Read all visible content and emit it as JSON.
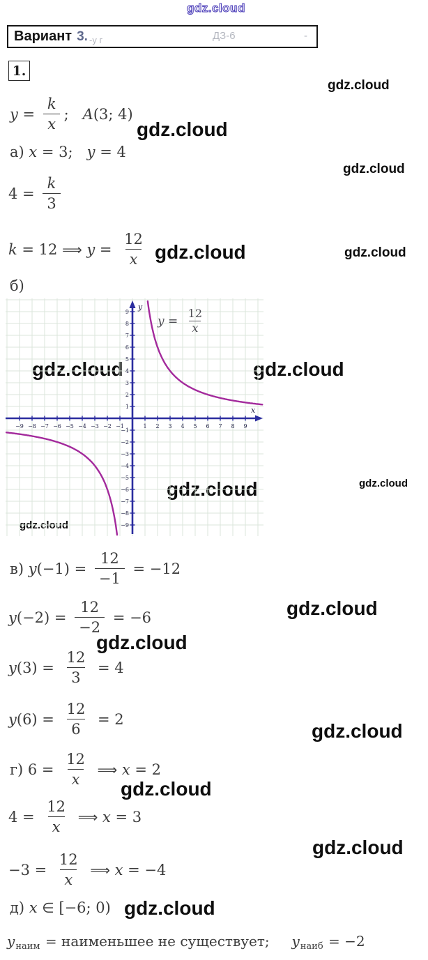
{
  "watermark": {
    "text": "gdz.cloud",
    "color": "#0e0e0e",
    "outline_color": "#4a3cb8"
  },
  "header": {
    "variant_label": "Вариант",
    "variant_number": "3.",
    "ghost_fragments": [
      "-у г",
      "ДЗ-6",
      "-"
    ]
  },
  "problem": {
    "number": "1."
  },
  "solution": {
    "lines": {
      "given": {
        "parts": [
          {
            "v": "y = "
          },
          {
            "frac": [
              "k",
              "x"
            ]
          },
          {
            "v": ";   A(3; 4)"
          }
        ]
      },
      "a_label": {
        "parts": [
          {
            "v": "а) x = 3;   y = 4"
          }
        ]
      },
      "a_eq1": {
        "parts": [
          {
            "v": "4 = "
          },
          {
            "frac": [
              "k",
              "3"
            ]
          }
        ]
      },
      "a_eq2": {
        "parts": [
          {
            "v": "k = 12 "
          },
          {
            "arrow": "⟹"
          },
          {
            "v": " y = "
          },
          {
            "frac": [
              "12",
              "x"
            ]
          }
        ]
      },
      "b_label": {
        "parts": [
          {
            "v": "б)"
          }
        ]
      },
      "v_eq1": {
        "parts": [
          {
            "v": "в) y(−1) = "
          },
          {
            "frac": [
              "12",
              "−1"
            ]
          },
          {
            "v": " = −12"
          }
        ]
      },
      "v_eq2": {
        "parts": [
          {
            "v": "y(−2) = "
          },
          {
            "frac": [
              "12",
              "−2"
            ]
          },
          {
            "v": " = −6"
          }
        ]
      },
      "v_eq3": {
        "parts": [
          {
            "v": "y(3) = "
          },
          {
            "frac": [
              "12",
              "3"
            ]
          },
          {
            "v": " = 4"
          }
        ]
      },
      "v_eq4": {
        "parts": [
          {
            "v": "y(6) = "
          },
          {
            "frac": [
              "12",
              "6"
            ]
          },
          {
            "v": " = 2"
          }
        ]
      },
      "g_eq1": {
        "parts": [
          {
            "v": "г) 6 = "
          },
          {
            "frac": [
              "12",
              "x"
            ]
          },
          {
            "v": " "
          },
          {
            "arrow": "⟹"
          },
          {
            "v": " x = 2"
          }
        ]
      },
      "g_eq2": {
        "parts": [
          {
            "v": "4 = "
          },
          {
            "frac": [
              "12",
              "x"
            ]
          },
          {
            "v": " "
          },
          {
            "arrow": "⟹"
          },
          {
            "v": " x = 3"
          }
        ]
      },
      "g_eq3": {
        "parts": [
          {
            "v": "−3 = "
          },
          {
            "frac": [
              "12",
              "x"
            ]
          },
          {
            "v": " "
          },
          {
            "arrow": "⟹"
          },
          {
            "v": " x = −4"
          }
        ]
      },
      "d_label": {
        "parts": [
          {
            "v": "д) x "
          },
          {
            "sym": "∈"
          },
          {
            "v": " [−6; 0)"
          }
        ]
      },
      "final": {
        "parts": [
          {
            "v": "y"
          },
          {
            "sub": "наим"
          },
          {
            "v": " = наименьшее не существует;     y"
          },
          {
            "sub": "наиб"
          },
          {
            "v": " = −2"
          }
        ]
      }
    }
  },
  "chart_data": {
    "type": "line",
    "function": "y = k/x",
    "k": 12,
    "curve_label": {
      "prefix": "y = ",
      "numerator": "12",
      "denominator": "x"
    },
    "xlabel": "x",
    "ylabel": "y",
    "x_ticks": [
      -9,
      -8,
      -7,
      -6,
      -5,
      -4,
      -3,
      -2,
      -1,
      1,
      2,
      3,
      4,
      5,
      6,
      7,
      8,
      9
    ],
    "y_ticks": [
      -9,
      -8,
      -7,
      -6,
      -5,
      -4,
      -3,
      -2,
      -1,
      1,
      2,
      3,
      4,
      5,
      6,
      7,
      8,
      9
    ],
    "xlim": [
      -10.1,
      10.4
    ],
    "ylim": [
      -10,
      10.2
    ],
    "grid": true,
    "branches": [
      [
        1.215,
        10.35
      ],
      [
        -10.05,
        -1.22
      ]
    ],
    "colors": {
      "axis": "#2b2d9f",
      "curve": "#a32a9c",
      "grid": "#dbe5db",
      "tick_text": "#26264a"
    }
  }
}
